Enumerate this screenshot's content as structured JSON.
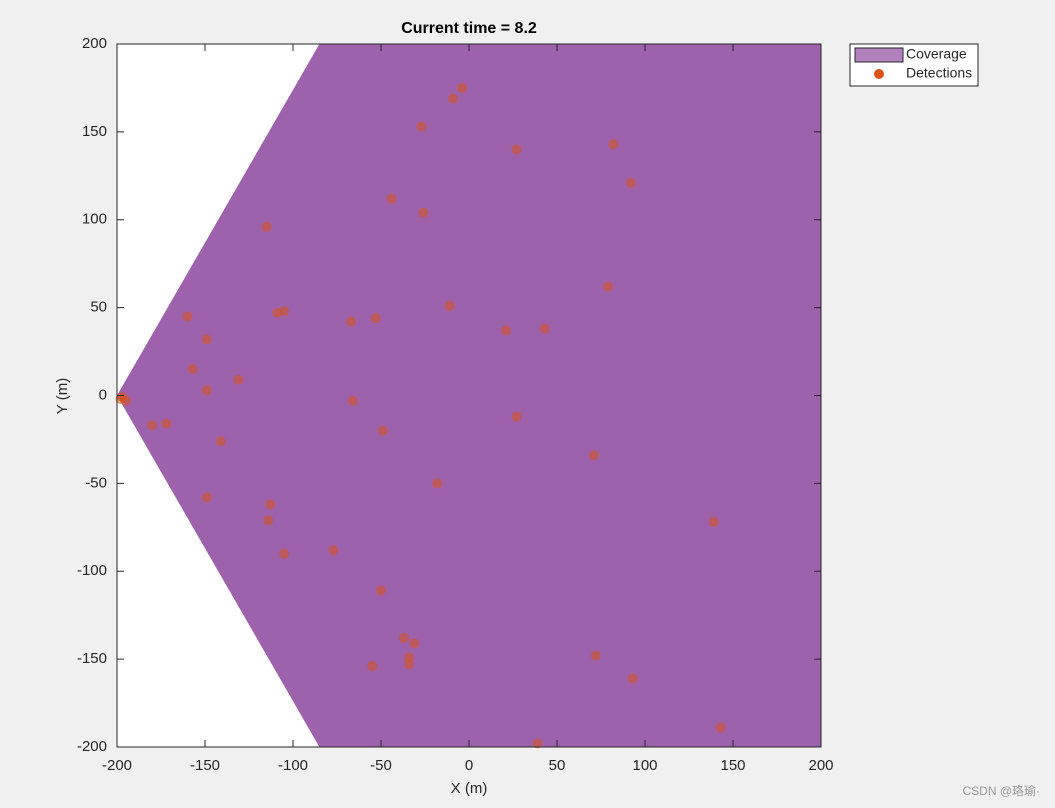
{
  "chart_data": {
    "type": "scatter",
    "title": "Current time = 8.2",
    "xlabel": "X (m)",
    "ylabel": "Y (m)",
    "xlim": [
      -200,
      200
    ],
    "ylim": [
      -200,
      200
    ],
    "xticks": [
      -200,
      -150,
      -100,
      -50,
      0,
      50,
      100,
      150,
      200
    ],
    "yticks": [
      -200,
      -150,
      -100,
      -50,
      0,
      50,
      100,
      150,
      200
    ],
    "legend": "outside-top-right",
    "series": [
      {
        "name": "Coverage",
        "kind": "polygon",
        "color": "#9e62ad",
        "x": [
          -200,
          -85,
          200,
          200,
          -85
        ],
        "y": [
          0,
          200,
          200,
          -200,
          -200
        ]
      },
      {
        "name": "Detections",
        "kind": "points",
        "color": "#d95319",
        "x": [
          -4,
          -9,
          -27,
          27,
          82,
          92,
          -44,
          -26,
          -115,
          79,
          -11,
          -105,
          -109,
          -160,
          -67,
          -53,
          21,
          43,
          -149,
          -157,
          -131,
          -149,
          -197,
          -195,
          -198,
          -66,
          27,
          -180,
          -172,
          -49,
          -141,
          71,
          -18,
          -149,
          -113,
          -114,
          139,
          -77,
          -105,
          -50,
          -37,
          -31,
          -34,
          -34,
          -55,
          72,
          93,
          143,
          39
        ],
        "y": [
          175,
          169,
          153,
          140,
          143,
          121,
          112,
          104,
          96,
          62,
          51,
          48,
          47,
          45,
          42,
          44,
          37,
          38,
          32,
          15,
          9,
          3,
          -1,
          -3,
          -2,
          -3,
          -12,
          -17,
          -16,
          -20,
          -26,
          -34,
          -50,
          -58,
          -62,
          -71,
          -72,
          -88,
          -90,
          -111,
          -138,
          -141,
          -149,
          -153,
          -154,
          -148,
          -161,
          -189,
          -198
        ]
      }
    ]
  },
  "watermark": "CSDN @珞瑜·"
}
